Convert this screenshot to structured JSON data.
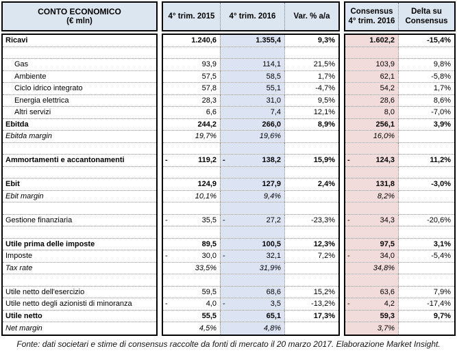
{
  "header": {
    "label_title": "CONTO ECONOMICO",
    "label_sub": "(€ mln)",
    "col_2015": "4° trim. 2015",
    "col_2016": "4° trim. 2016",
    "col_var": "Var. % a/a",
    "col_cons_line1": "Consensus",
    "col_cons_line2": "4° trim. 2016",
    "col_delta_line1": "Delta su",
    "col_delta_line2": "Consensus"
  },
  "colors": {
    "header_bg": "#dce6f1",
    "col_2016_bg": "#dce4f3",
    "consensus_bg": "#f2dcdb",
    "border": "#000000"
  },
  "rows": [
    {
      "label": "Ricavi",
      "style": "bold",
      "cells": [
        {
          "v": "1.240,6"
        },
        {
          "v": "1.355,4"
        },
        {
          "v": "9,3%"
        },
        {
          "v": "1.602,2"
        },
        {
          "v": "-15,4%"
        }
      ]
    },
    {
      "blank": true
    },
    {
      "label": "Gas",
      "style": "indent",
      "cells": [
        {
          "v": "93,9"
        },
        {
          "v": "114,1"
        },
        {
          "v": "21,5%"
        },
        {
          "v": "103,9"
        },
        {
          "v": "9,8%"
        }
      ]
    },
    {
      "label": "Ambiente",
      "style": "indent",
      "cells": [
        {
          "v": "57,5"
        },
        {
          "v": "58,5"
        },
        {
          "v": "1,7%"
        },
        {
          "v": "62,1"
        },
        {
          "v": "-5,8%"
        }
      ]
    },
    {
      "label": "Ciclo idrico integrato",
      "style": "indent",
      "cells": [
        {
          "v": "57,8"
        },
        {
          "v": "55,1"
        },
        {
          "v": "-4,7%"
        },
        {
          "v": "54,2"
        },
        {
          "v": "1,7%"
        }
      ]
    },
    {
      "label": "Energia elettrica",
      "style": "indent",
      "cells": [
        {
          "v": "28,3"
        },
        {
          "v": "31,0"
        },
        {
          "v": "9,5%"
        },
        {
          "v": "28,6"
        },
        {
          "v": "8,6%"
        }
      ]
    },
    {
      "label": "Altri servizi",
      "style": "indent",
      "cells": [
        {
          "v": "6,6"
        },
        {
          "v": "7,4"
        },
        {
          "v": "12,1%"
        },
        {
          "v": "8,0"
        },
        {
          "v": "-7,0%"
        }
      ]
    },
    {
      "label": "Ebitda",
      "style": "bold",
      "cells": [
        {
          "v": "244,2"
        },
        {
          "v": "266,0"
        },
        {
          "v": "8,9%"
        },
        {
          "v": "256,1"
        },
        {
          "v": "3,9%"
        }
      ]
    },
    {
      "label": "Ebitda margin",
      "style": "italic",
      "cells": [
        {
          "v": "19,7%"
        },
        {
          "v": "19,6%"
        },
        {
          "v": ""
        },
        {
          "v": "16,0%"
        },
        {
          "v": ""
        }
      ]
    },
    {
      "blank": true
    },
    {
      "label": "Ammortamenti e accantonamenti",
      "style": "bold",
      "cells": [
        {
          "v": "119,2",
          "neg": true
        },
        {
          "v": "138,2",
          "neg": true
        },
        {
          "v": "15,9%"
        },
        {
          "v": "124,3",
          "neg": true
        },
        {
          "v": "11,2%"
        }
      ]
    },
    {
      "blank": true
    },
    {
      "label": "Ebit",
      "style": "bold",
      "cells": [
        {
          "v": "124,9"
        },
        {
          "v": "127,9"
        },
        {
          "v": "2,4%"
        },
        {
          "v": "131,8"
        },
        {
          "v": "-3,0%"
        }
      ]
    },
    {
      "label": "Ebit margin",
      "style": "italic",
      "cells": [
        {
          "v": "10,1%"
        },
        {
          "v": "9,4%"
        },
        {
          "v": ""
        },
        {
          "v": "8,2%"
        },
        {
          "v": ""
        }
      ]
    },
    {
      "blank": true
    },
    {
      "label": "Gestione finanziaria",
      "style": "",
      "cells": [
        {
          "v": "35,5",
          "neg": true
        },
        {
          "v": "27,2",
          "neg": true
        },
        {
          "v": "-23,3%"
        },
        {
          "v": "34,3",
          "neg": true
        },
        {
          "v": "-20,6%"
        }
      ]
    },
    {
      "blank": true
    },
    {
      "label": "Utile prima delle imposte",
      "style": "bold",
      "cells": [
        {
          "v": "89,5"
        },
        {
          "v": "100,5"
        },
        {
          "v": "12,3%"
        },
        {
          "v": "97,5"
        },
        {
          "v": "3,1%"
        }
      ]
    },
    {
      "label": "Imposte",
      "style": "",
      "cells": [
        {
          "v": "30,0",
          "neg": true
        },
        {
          "v": "32,1",
          "neg": true
        },
        {
          "v": "7,2%"
        },
        {
          "v": "34,0",
          "neg": true
        },
        {
          "v": "-5,4%"
        }
      ]
    },
    {
      "label": "Tax rate",
      "style": "italic",
      "cells": [
        {
          "v": "33,5%"
        },
        {
          "v": "31,9%"
        },
        {
          "v": ""
        },
        {
          "v": "34,8%"
        },
        {
          "v": ""
        }
      ]
    },
    {
      "blank": true
    },
    {
      "label": "Utile netto dell'esercizio",
      "style": "",
      "cells": [
        {
          "v": "59,5"
        },
        {
          "v": "68,6"
        },
        {
          "v": "15,2%"
        },
        {
          "v": "63,6"
        },
        {
          "v": "7,9%"
        }
      ]
    },
    {
      "label": "Utile netto degli azionisti di minoranza",
      "style": "",
      "cells": [
        {
          "v": "4,0",
          "neg": true
        },
        {
          "v": "3,5",
          "neg": true
        },
        {
          "v": "-13,2%"
        },
        {
          "v": "4,2",
          "neg": true
        },
        {
          "v": "-17,4%"
        }
      ]
    },
    {
      "label": "Utile netto",
      "style": "bold",
      "cells": [
        {
          "v": "55,5"
        },
        {
          "v": "65,1"
        },
        {
          "v": "17,3%"
        },
        {
          "v": "59,3"
        },
        {
          "v": "9,7%"
        }
      ]
    },
    {
      "label": "Net margin",
      "style": "italic",
      "cells": [
        {
          "v": "4,5%"
        },
        {
          "v": "4,8%"
        },
        {
          "v": ""
        },
        {
          "v": "3,7%"
        },
        {
          "v": ""
        }
      ]
    }
  ],
  "footer": "Fonte: dati societari e stime di consensus raccolte da fonti di mercato il 20 marzo 2017. Elaborazione Market Insight.",
  "chart_data": {
    "type": "table",
    "title": "CONTO ECONOMICO (€ mln)",
    "columns": [
      "CONTO ECONOMICO (€ mln)",
      "4° trim. 2015",
      "4° trim. 2016",
      "Var. % a/a",
      "Consensus 4° trim. 2016",
      "Delta su Consensus"
    ],
    "rows": [
      [
        "Ricavi",
        1240.6,
        1355.4,
        9.3,
        1602.2,
        -15.4
      ],
      [
        "Gas",
        93.9,
        114.1,
        21.5,
        103.9,
        9.8
      ],
      [
        "Ambiente",
        57.5,
        58.5,
        1.7,
        62.1,
        -5.8
      ],
      [
        "Ciclo idrico integrato",
        57.8,
        55.1,
        -4.7,
        54.2,
        1.7
      ],
      [
        "Energia elettrica",
        28.3,
        31.0,
        9.5,
        28.6,
        8.6
      ],
      [
        "Altri servizi",
        6.6,
        7.4,
        12.1,
        8.0,
        -7.0
      ],
      [
        "Ebitda",
        244.2,
        266.0,
        8.9,
        256.1,
        3.9
      ],
      [
        "Ebitda margin %",
        19.7,
        19.6,
        null,
        16.0,
        null
      ],
      [
        "Ammortamenti e accantonamenti",
        -119.2,
        -138.2,
        15.9,
        -124.3,
        11.2
      ],
      [
        "Ebit",
        124.9,
        127.9,
        2.4,
        131.8,
        -3.0
      ],
      [
        "Ebit margin %",
        10.1,
        9.4,
        null,
        8.2,
        null
      ],
      [
        "Gestione finanziaria",
        -35.5,
        -27.2,
        -23.3,
        -34.3,
        -20.6
      ],
      [
        "Utile prima delle imposte",
        89.5,
        100.5,
        12.3,
        97.5,
        3.1
      ],
      [
        "Imposte",
        -30.0,
        -32.1,
        7.2,
        -34.0,
        -5.4
      ],
      [
        "Tax rate %",
        33.5,
        31.9,
        null,
        34.8,
        null
      ],
      [
        "Utile netto dell'esercizio",
        59.5,
        68.6,
        15.2,
        63.6,
        7.9
      ],
      [
        "Utile netto degli azionisti di minoranza",
        -4.0,
        -3.5,
        -13.2,
        -4.2,
        -17.4
      ],
      [
        "Utile netto",
        55.5,
        65.1,
        17.3,
        59.3,
        9.7
      ],
      [
        "Net margin %",
        4.5,
        4.8,
        null,
        3.7,
        null
      ]
    ]
  }
}
